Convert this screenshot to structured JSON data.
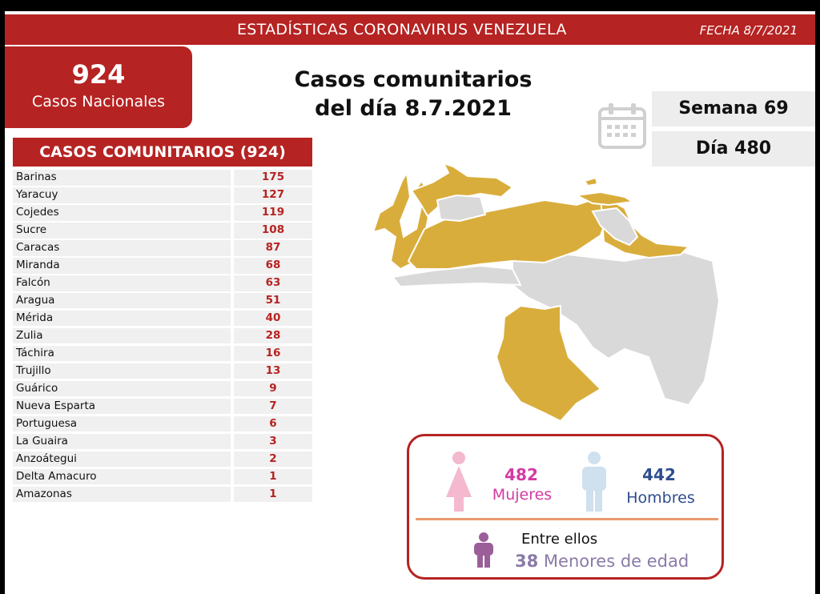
{
  "header": {
    "title": "ESTADÍSTICAS CORONAVIRUS VENEZUELA",
    "date": "FECHA 8/7/2021"
  },
  "national": {
    "count": "924",
    "label": "Casos Nacionales"
  },
  "headline": {
    "line1": "Casos comunitarios",
    "line2": "del día 8.7.2021"
  },
  "week": {
    "semana": "Semana 69",
    "dia": "Día 480"
  },
  "table": {
    "title": "CASOS COMUNITARIOS (924)",
    "rows": [
      {
        "name": "Barinas",
        "value": "175"
      },
      {
        "name": "Yaracuy",
        "value": "127"
      },
      {
        "name": "Cojedes",
        "value": "119"
      },
      {
        "name": "Sucre",
        "value": "108"
      },
      {
        "name": "Caracas",
        "value": "87"
      },
      {
        "name": "Miranda",
        "value": "68"
      },
      {
        "name": "Falcón",
        "value": "63"
      },
      {
        "name": "Aragua",
        "value": "51"
      },
      {
        "name": "Mérida",
        "value": "40"
      },
      {
        "name": "Zulia",
        "value": "28"
      },
      {
        "name": "Táchira",
        "value": "16"
      },
      {
        "name": "Trujillo",
        "value": "13"
      },
      {
        "name": "Guárico",
        "value": "9"
      },
      {
        "name": "Nueva Esparta",
        "value": "7"
      },
      {
        "name": "Portuguesa",
        "value": "6"
      },
      {
        "name": "La Guaira",
        "value": "3"
      },
      {
        "name": "Anzoátegui",
        "value": "2"
      },
      {
        "name": "Delta Amacuro",
        "value": "1"
      },
      {
        "name": "Amazonas",
        "value": "1"
      }
    ]
  },
  "gender": {
    "women_count": "482",
    "women_label": "Mujeres",
    "men_count": "442",
    "men_label": "Hombres",
    "among": "Entre ellos",
    "minors_count": "38",
    "minors_label": "Menores de edad"
  },
  "colors": {
    "brand_red": "#b52322",
    "map_highlight": "#d9ad3c",
    "map_base": "#d9d9d9",
    "women": "#d33aa3",
    "men": "#2e4d8f",
    "minors": "#8a7aa8"
  },
  "icons": [
    "calendar-icon",
    "woman-icon",
    "man-icon",
    "child-icon"
  ]
}
